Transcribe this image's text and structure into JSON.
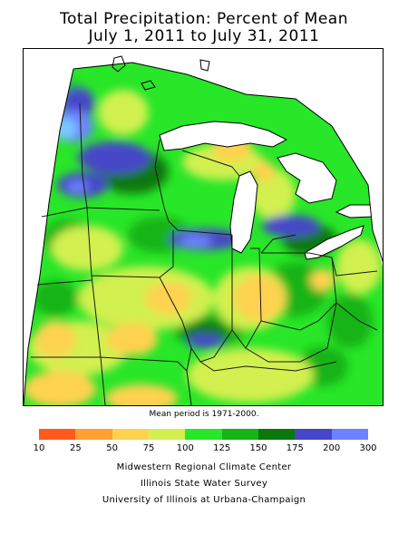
{
  "title": {
    "line1": "Total Precipitation: Percent of Mean",
    "line2": "July 1, 2011 to July 31, 2011"
  },
  "note": "Mean period is 1971-2000.",
  "legend": {
    "ticks": [
      "10",
      "25",
      "50",
      "75",
      "100",
      "125",
      "150",
      "175",
      "200",
      "300"
    ],
    "colors": [
      "#ff5a1e",
      "#ffa032",
      "#ffd250",
      "#d2f050",
      "#28e628",
      "#16b416",
      "#0a780a",
      "#4646c8",
      "#6e82ff",
      "#78c8ff"
    ]
  },
  "credits": {
    "line1": "Midwestern Regional Climate Center",
    "line2": "Illinois State Water Survey",
    "line3": "University of Illinois at Urbana-Champaign"
  },
  "map": {
    "region": "Midwest United States",
    "land_color": "#28e628",
    "lake_color": "#ffffff"
  }
}
